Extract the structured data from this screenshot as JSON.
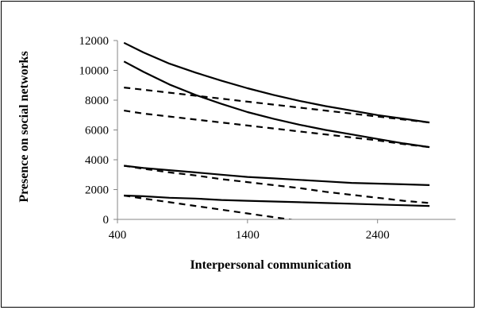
{
  "colors": {
    "axis": "#868686",
    "series": "#000000",
    "background": "#ffffff"
  },
  "chart_data": {
    "type": "line",
    "title": "",
    "xlabel": "Interpersonal communication",
    "ylabel": "Presence on social networks",
    "xlim": [
      400,
      3000
    ],
    "ylim": [
      0,
      12000
    ],
    "xticks": [
      400,
      1400,
      2400
    ],
    "yticks": [
      0,
      2000,
      4000,
      6000,
      8000,
      10000,
      12000
    ],
    "grid": false,
    "legend": "none",
    "x": [
      450,
      600,
      800,
      1000,
      1200,
      1400,
      1600,
      1800,
      2000,
      2200,
      2400,
      2600,
      2800
    ],
    "series": [
      {
        "style": "solid",
        "values": [
          11850,
          11200,
          10450,
          9850,
          9300,
          8800,
          8350,
          7950,
          7600,
          7300,
          7000,
          6750,
          6500
        ]
      },
      {
        "style": "solid",
        "values": [
          10600,
          9900,
          9050,
          8350,
          7750,
          7200,
          6750,
          6350,
          6000,
          5700,
          5400,
          5100,
          4850
        ]
      },
      {
        "style": "dashed",
        "values": [
          8850,
          8700,
          8500,
          8300,
          8100,
          7900,
          7700,
          7500,
          7300,
          7100,
          6900,
          6700,
          6500
        ]
      },
      {
        "style": "dashed",
        "values": [
          7300,
          7100,
          6900,
          6700,
          6500,
          6300,
          6100,
          5900,
          5700,
          5500,
          5300,
          5050,
          4850
        ]
      },
      {
        "style": "solid",
        "values": [
          3600,
          3450,
          3300,
          3150,
          3000,
          2850,
          2750,
          2650,
          2550,
          2450,
          2400,
          2350,
          2300
        ]
      },
      {
        "style": "dashed",
        "values": [
          3600,
          3400,
          3150,
          2950,
          2700,
          2500,
          2300,
          2100,
          1850,
          1650,
          1450,
          1250,
          1100
        ]
      },
      {
        "style": "solid",
        "values": [
          1600,
          1550,
          1450,
          1400,
          1300,
          1250,
          1200,
          1150,
          1100,
          1050,
          1000,
          950,
          900
        ]
      },
      {
        "style": "dashed",
        "values": [
          1600,
          1400,
          1150,
          900,
          650,
          400,
          150,
          -100,
          -350,
          null,
          null,
          null,
          null
        ]
      }
    ]
  }
}
